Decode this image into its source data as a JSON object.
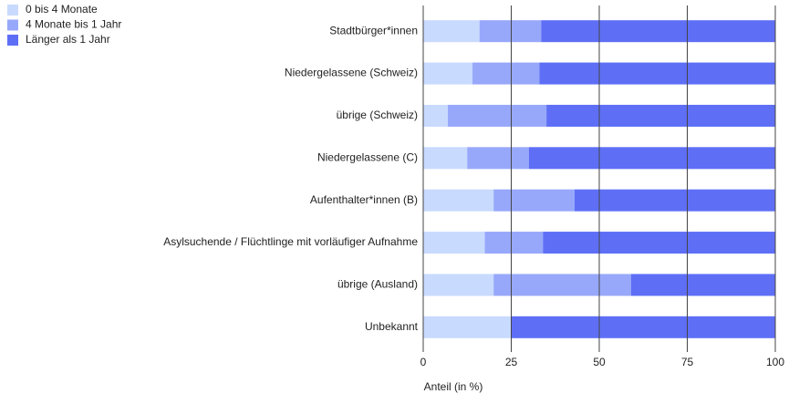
{
  "chart_data": {
    "type": "stacked-barh",
    "categories": [
      "Stadtbürger*innen",
      "Niedergelassene (Schweiz)",
      "übrige (Schweiz)",
      "Niedergelassene (C)",
      "Aufenthalter*innen (B)",
      "Asylsuchende / Flüchtlinge mit vorläufiger Aufnahme",
      "übrige (Ausland)",
      "Unbekannt"
    ],
    "series": [
      {
        "name": "0 bis 4 Monate",
        "color": "#c8dafe",
        "values": [
          16,
          14,
          7,
          12.5,
          20,
          17.5,
          20,
          25
        ]
      },
      {
        "name": "4 Monate bis 1 Jahr",
        "color": "#97a8fb",
        "values": [
          17.5,
          19,
          28,
          17.5,
          23,
          16.5,
          39,
          0
        ]
      },
      {
        "name": "Länger als 1 Jahr",
        "color": "#5e6ff6",
        "values": [
          66.5,
          67,
          65,
          70,
          57,
          66,
          41,
          75
        ]
      }
    ],
    "xlabel": "Anteil (in %)",
    "xlim": [
      0,
      100
    ],
    "xticks": [
      0,
      25,
      50,
      75,
      100
    ],
    "grid": true,
    "legend": "top-left"
  }
}
